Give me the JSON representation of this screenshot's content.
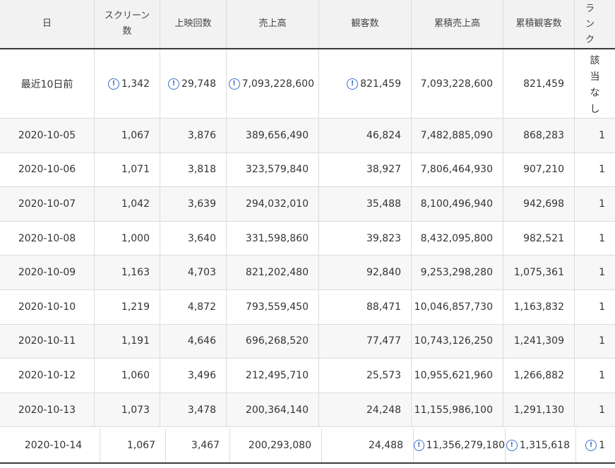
{
  "headers": {
    "date": "日",
    "screens": "スクリーン数",
    "showings": "上映回数",
    "sales": "売上高",
    "audience": "観客数",
    "cum_sales": "累積売上高",
    "cum_audience": "累積観客数",
    "rank": [
      "ラ",
      "ン",
      "ク"
    ]
  },
  "first_row": {
    "date": "最近10日前",
    "screens": "1,342",
    "showings": "29,748",
    "sales": "7,093,228,600",
    "audience": "821,459",
    "cum_sales": "7,093,228,600",
    "cum_audience": "821,459",
    "rank": [
      "該",
      "当",
      "な",
      "し"
    ]
  },
  "rows": [
    {
      "date": "2020-10-05",
      "screens": "1,067",
      "showings": "3,876",
      "sales": "389,656,490",
      "audience": "46,824",
      "cum_sales": "7,482,885,090",
      "cum_audience": "868,283",
      "rank": "1"
    },
    {
      "date": "2020-10-06",
      "screens": "1,071",
      "showings": "3,818",
      "sales": "323,579,840",
      "audience": "38,927",
      "cum_sales": "7,806,464,930",
      "cum_audience": "907,210",
      "rank": "1"
    },
    {
      "date": "2020-10-07",
      "screens": "1,042",
      "showings": "3,639",
      "sales": "294,032,010",
      "audience": "35,488",
      "cum_sales": "8,100,496,940",
      "cum_audience": "942,698",
      "rank": "1"
    },
    {
      "date": "2020-10-08",
      "screens": "1,000",
      "showings": "3,640",
      "sales": "331,598,860",
      "audience": "39,823",
      "cum_sales": "8,432,095,800",
      "cum_audience": "982,521",
      "rank": "1"
    },
    {
      "date": "2020-10-09",
      "screens": "1,163",
      "showings": "4,703",
      "sales": "821,202,480",
      "audience": "92,840",
      "cum_sales": "9,253,298,280",
      "cum_audience": "1,075,361",
      "rank": "1"
    },
    {
      "date": "2020-10-10",
      "screens": "1,219",
      "showings": "4,872",
      "sales": "793,559,450",
      "audience": "88,471",
      "cum_sales": "10,046,857,730",
      "cum_audience": "1,163,832",
      "rank": "1"
    },
    {
      "date": "2020-10-11",
      "screens": "1,191",
      "showings": "4,646",
      "sales": "696,268,520",
      "audience": "77,477",
      "cum_sales": "10,743,126,250",
      "cum_audience": "1,241,309",
      "rank": "1"
    },
    {
      "date": "2020-10-12",
      "screens": "1,060",
      "showings": "3,496",
      "sales": "212,495,710",
      "audience": "25,573",
      "cum_sales": "10,955,621,960",
      "cum_audience": "1,266,882",
      "rank": "1"
    },
    {
      "date": "2020-10-13",
      "screens": "1,073",
      "showings": "3,478",
      "sales": "200,364,140",
      "audience": "24,248",
      "cum_sales": "11,155,986,100",
      "cum_audience": "1,291,130",
      "rank": "1"
    }
  ],
  "last_row": {
    "date": "2020-10-14",
    "screens": "1,067",
    "showings": "3,467",
    "sales": "200,293,080",
    "audience": "24,488",
    "cum_sales": "11,356,279,180",
    "cum_audience": "1,315,618",
    "rank": "1"
  },
  "icons": {
    "info": "info-circle-icon",
    "glyph": "!"
  },
  "colors": {
    "accent": "#3b6fd0",
    "header_bg": "#f2f2f2",
    "alt_row_bg": "#f7f7f7"
  }
}
